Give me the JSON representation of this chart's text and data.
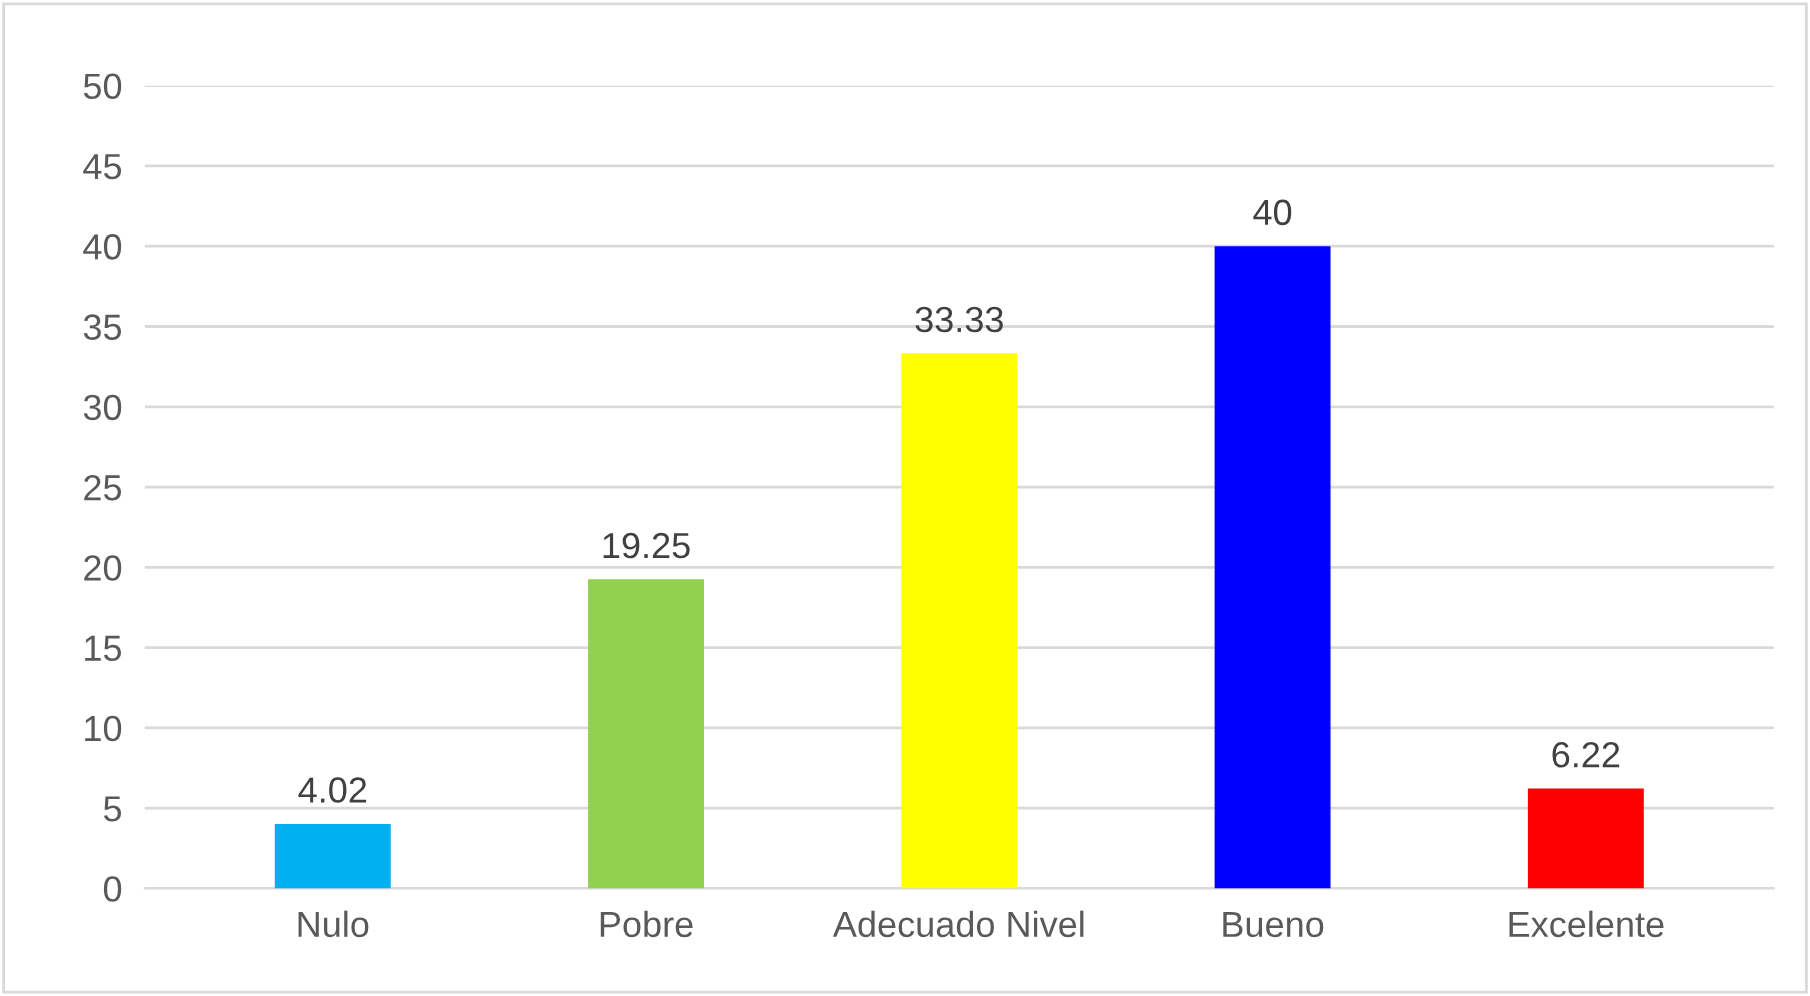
{
  "chart_data": {
    "type": "bar",
    "categories": [
      "Nulo",
      "Pobre",
      "Adecuado Nivel",
      "Bueno",
      "Excelente"
    ],
    "values": [
      4.02,
      19.25,
      33.33,
      40,
      6.22
    ],
    "colors": [
      "#00b0f0",
      "#92d050",
      "#ffff00",
      "#0000ff",
      "#ff0000"
    ],
    "data_labels": true,
    "ylim": [
      0,
      50
    ],
    "yticks": [
      0,
      5,
      10,
      15,
      20,
      25,
      30,
      35,
      40,
      45,
      50
    ],
    "grid": "y"
  }
}
